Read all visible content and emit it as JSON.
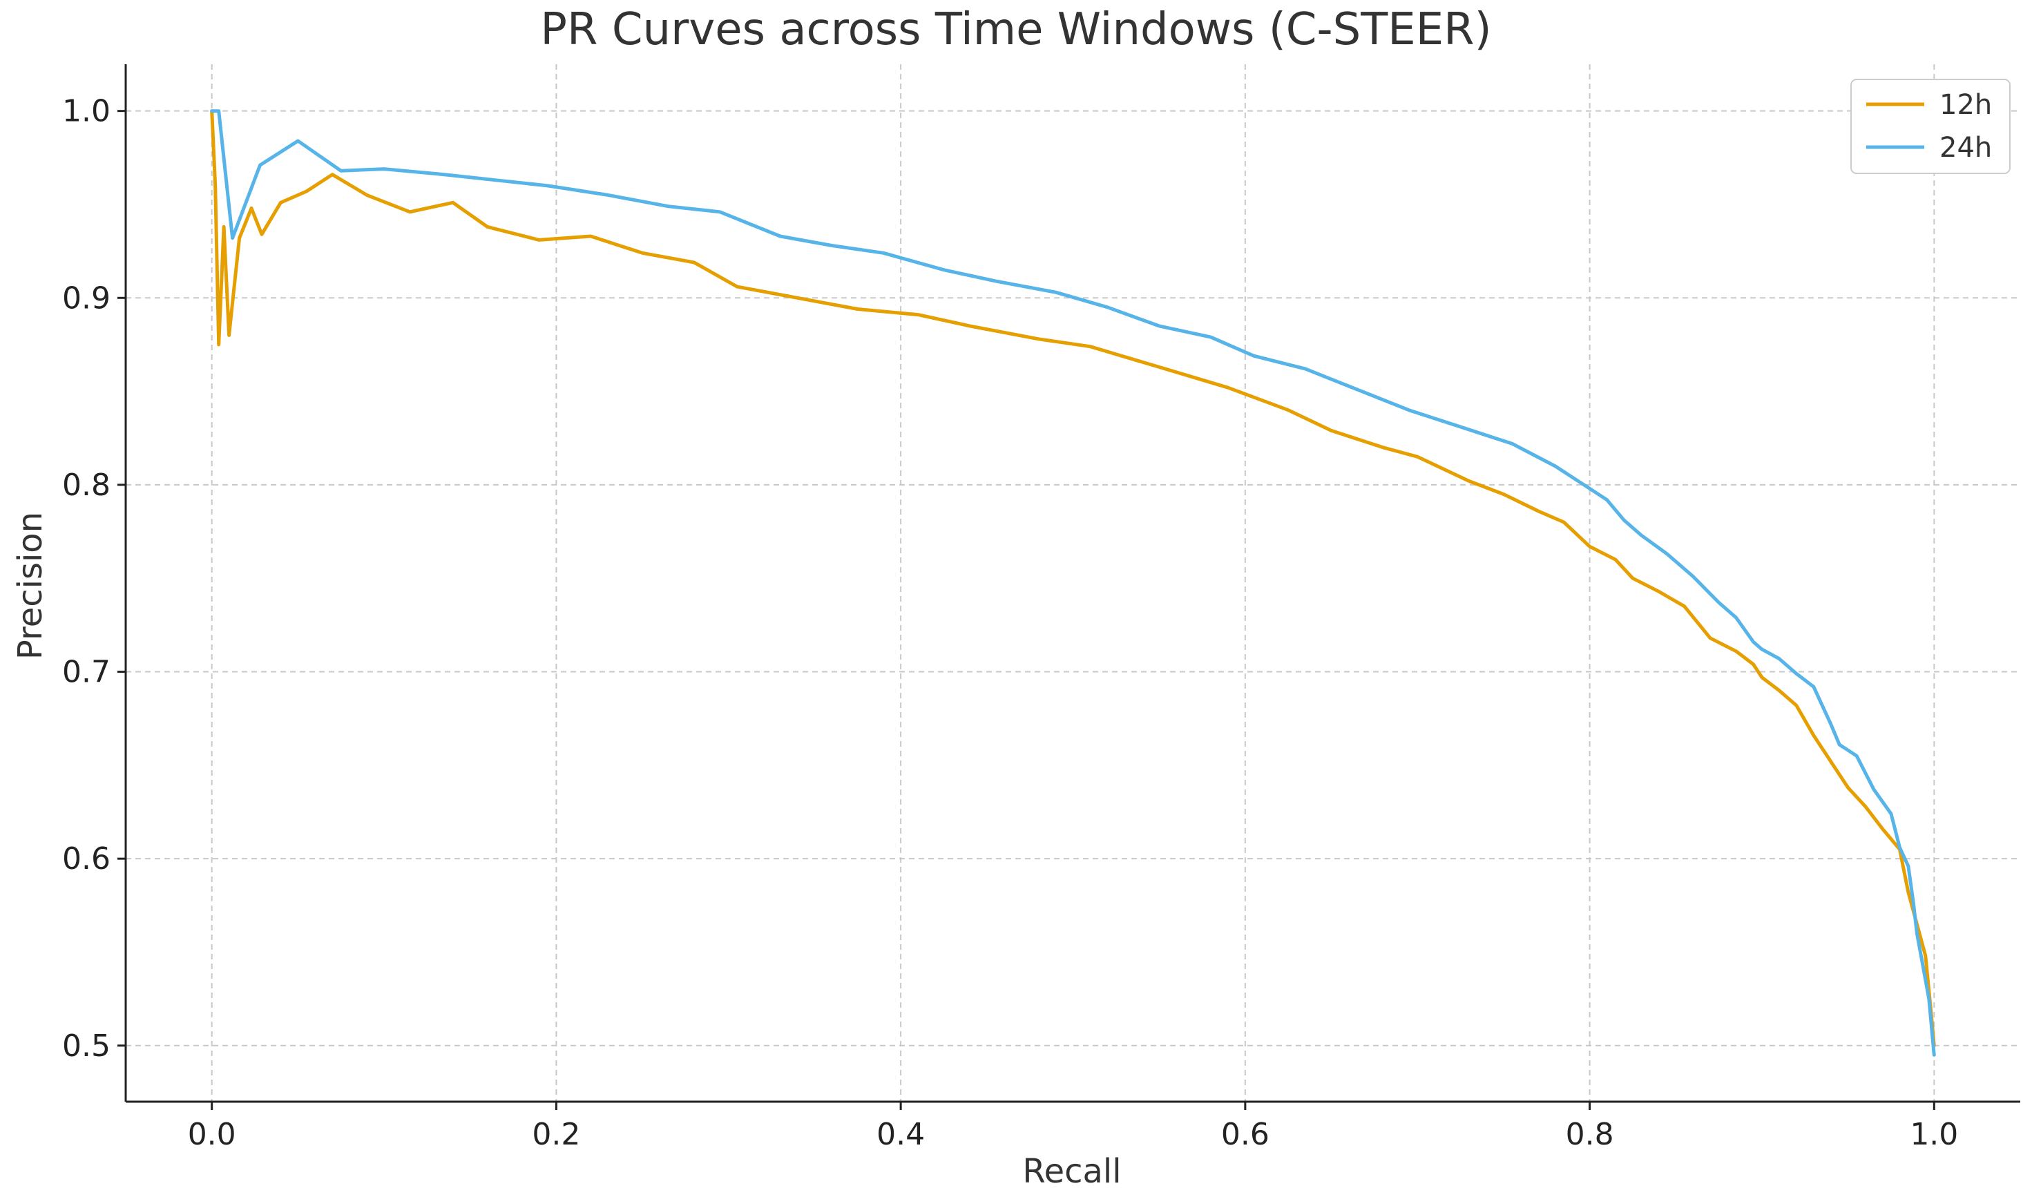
{
  "chart_data": {
    "type": "line",
    "title": "PR Curves across Time Windows (C-STEER)",
    "xlabel": "Recall",
    "ylabel": "Precision",
    "xlim": [
      -0.05,
      1.05
    ],
    "ylim": [
      0.47,
      1.025
    ],
    "xticks": [
      0.0,
      0.2,
      0.4,
      0.6,
      0.8,
      1.0
    ],
    "xtick_labels": [
      "0.0",
      "0.2",
      "0.4",
      "0.6",
      "0.8",
      "1.0"
    ],
    "yticks": [
      0.5,
      0.6,
      0.7,
      0.8,
      0.9,
      1.0
    ],
    "ytick_labels": [
      "0.5",
      "0.6",
      "0.7",
      "0.8",
      "0.9",
      "1.0"
    ],
    "grid": true,
    "legend_position": "top-right",
    "series": [
      {
        "name": "12h",
        "color": "#E69F00",
        "x": [
          0.0,
          0.002,
          0.004,
          0.007,
          0.01,
          0.016,
          0.023,
          0.029,
          0.04,
          0.055,
          0.07,
          0.09,
          0.115,
          0.14,
          0.16,
          0.19,
          0.22,
          0.25,
          0.28,
          0.305,
          0.34,
          0.375,
          0.41,
          0.44,
          0.48,
          0.51,
          0.55,
          0.59,
          0.625,
          0.65,
          0.68,
          0.7,
          0.73,
          0.75,
          0.77,
          0.785,
          0.8,
          0.815,
          0.825,
          0.84,
          0.855,
          0.87,
          0.885,
          0.895,
          0.9,
          0.91,
          0.92,
          0.93,
          0.94,
          0.95,
          0.96,
          0.97,
          0.98,
          0.985,
          0.99,
          0.995,
          0.998,
          1.0
        ],
        "y": [
          1.0,
          0.96,
          0.875,
          0.938,
          0.88,
          0.932,
          0.948,
          0.934,
          0.951,
          0.957,
          0.966,
          0.955,
          0.946,
          0.951,
          0.938,
          0.931,
          0.933,
          0.924,
          0.919,
          0.906,
          0.9,
          0.894,
          0.891,
          0.885,
          0.878,
          0.874,
          0.863,
          0.852,
          0.84,
          0.829,
          0.82,
          0.815,
          0.802,
          0.795,
          0.786,
          0.78,
          0.767,
          0.76,
          0.75,
          0.743,
          0.735,
          0.718,
          0.711,
          0.704,
          0.697,
          0.69,
          0.682,
          0.666,
          0.652,
          0.638,
          0.628,
          0.616,
          0.605,
          0.582,
          0.565,
          0.548,
          0.52,
          0.5
        ]
      },
      {
        "name": "24h",
        "color": "#56B4E9",
        "x": [
          0.0,
          0.004,
          0.012,
          0.028,
          0.05,
          0.075,
          0.1,
          0.135,
          0.165,
          0.195,
          0.23,
          0.265,
          0.295,
          0.33,
          0.36,
          0.39,
          0.425,
          0.455,
          0.49,
          0.52,
          0.55,
          0.58,
          0.605,
          0.635,
          0.665,
          0.695,
          0.725,
          0.755,
          0.78,
          0.8,
          0.81,
          0.82,
          0.83,
          0.845,
          0.86,
          0.875,
          0.885,
          0.895,
          0.9,
          0.91,
          0.92,
          0.93,
          0.94,
          0.945,
          0.955,
          0.965,
          0.975,
          0.98,
          0.985,
          0.988,
          0.99,
          0.993,
          0.997,
          1.0
        ],
        "y": [
          1.0,
          1.0,
          0.932,
          0.971,
          0.984,
          0.968,
          0.969,
          0.966,
          0.963,
          0.96,
          0.955,
          0.949,
          0.946,
          0.933,
          0.928,
          0.924,
          0.915,
          0.909,
          0.903,
          0.895,
          0.885,
          0.879,
          0.869,
          0.862,
          0.851,
          0.84,
          0.831,
          0.822,
          0.81,
          0.798,
          0.792,
          0.781,
          0.773,
          0.763,
          0.751,
          0.737,
          0.729,
          0.716,
          0.712,
          0.707,
          0.699,
          0.692,
          0.672,
          0.661,
          0.655,
          0.637,
          0.624,
          0.606,
          0.596,
          0.576,
          0.56,
          0.545,
          0.525,
          0.495
        ]
      }
    ]
  }
}
